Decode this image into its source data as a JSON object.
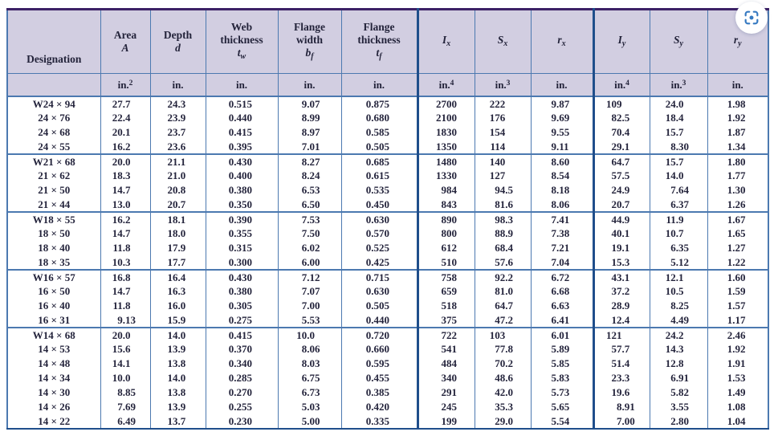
{
  "colors": {
    "header_bg": "#d2cee1",
    "grid_blue": "#4c79b0",
    "thick_blue": "#1f4e8b",
    "top_purple": "#3c2166",
    "icon_blue": "#3579c1"
  },
  "overlay": {
    "capture_icon": "focus-capture-icon"
  },
  "table": {
    "columns": [
      {
        "key": "designation",
        "title_lines": [
          "Designation"
        ],
        "symbol": null,
        "sub": null,
        "unit": "",
        "unit_sup": null,
        "thick_left": false,
        "bottom_align": true
      },
      {
        "key": "area",
        "title_lines": [
          "Area"
        ],
        "symbol": "A",
        "sub": "",
        "unit": "in.",
        "unit_sup": "2",
        "thick_left": false
      },
      {
        "key": "depth",
        "title_lines": [
          "Depth"
        ],
        "symbol": "d",
        "sub": "",
        "unit": "in.",
        "unit_sup": null,
        "thick_left": false
      },
      {
        "key": "web-thickness",
        "title_lines": [
          "Web",
          "thickness"
        ],
        "symbol": "t",
        "sub": "w",
        "unit": "in.",
        "unit_sup": null,
        "thick_left": false
      },
      {
        "key": "flange-width",
        "title_lines": [
          "Flange",
          "width"
        ],
        "symbol": "b",
        "sub": "f",
        "unit": "in.",
        "unit_sup": null,
        "thick_left": false
      },
      {
        "key": "flange-thickness",
        "title_lines": [
          "Flange",
          "thickness"
        ],
        "symbol": "t",
        "sub": "f",
        "unit": "in.",
        "unit_sup": null,
        "thick_left": false
      },
      {
        "key": "Ix",
        "title_lines": [],
        "symbol": "I",
        "sub": "x",
        "unit": "in.",
        "unit_sup": "4",
        "thick_left": true
      },
      {
        "key": "Sx",
        "title_lines": [],
        "symbol": "S",
        "sub": "x",
        "unit": "in.",
        "unit_sup": "3",
        "thick_left": false
      },
      {
        "key": "rx",
        "title_lines": [],
        "symbol": "r",
        "sub": "x",
        "unit": "in.",
        "unit_sup": null,
        "thick_left": false
      },
      {
        "key": "Iy",
        "title_lines": [],
        "symbol": "I",
        "sub": "y",
        "unit": "in.",
        "unit_sup": "4",
        "thick_left": true
      },
      {
        "key": "Sy",
        "title_lines": [],
        "symbol": "S",
        "sub": "y",
        "unit": "in.",
        "unit_sup": "3",
        "thick_left": false
      },
      {
        "key": "ry",
        "title_lines": [],
        "symbol": "r",
        "sub": "y",
        "unit": "in.",
        "unit_sup": null,
        "thick_left": false
      }
    ],
    "groups": [
      {
        "rows": [
          [
            "W24 × 94",
            "27.7",
            "24.3",
            "0.515",
            "9.07",
            "0.875",
            "2700",
            "222",
            "9.87",
            "109",
            "24.0",
            "1.98"
          ],
          [
            "24 × 76",
            "22.4",
            "23.9",
            "0.440",
            "8.99",
            "0.680",
            "2100",
            "176",
            "9.69",
            "82.5",
            "18.4",
            "1.92"
          ],
          [
            "24 × 68",
            "20.1",
            "23.7",
            "0.415",
            "8.97",
            "0.585",
            "1830",
            "154",
            "9.55",
            "70.4",
            "15.7",
            "1.87"
          ],
          [
            "24 × 55",
            "16.2",
            "23.6",
            "0.395",
            "7.01",
            "0.505",
            "1350",
            "114",
            "9.11",
            "29.1",
            "8.30",
            "1.34"
          ]
        ]
      },
      {
        "rows": [
          [
            "W21 × 68",
            "20.0",
            "21.1",
            "0.430",
            "8.27",
            "0.685",
            "1480",
            "140",
            "8.60",
            "64.7",
            "15.7",
            "1.80"
          ],
          [
            "21 × 62",
            "18.3",
            "21.0",
            "0.400",
            "8.24",
            "0.615",
            "1330",
            "127",
            "8.54",
            "57.5",
            "14.0",
            "1.77"
          ],
          [
            "21 × 50",
            "14.7",
            "20.8",
            "0.380",
            "6.53",
            "0.535",
            "984",
            "94.5",
            "8.18",
            "24.9",
            "7.64",
            "1.30"
          ],
          [
            "21 × 44",
            "13.0",
            "20.7",
            "0.350",
            "6.50",
            "0.450",
            "843",
            "81.6",
            "8.06",
            "20.7",
            "6.37",
            "1.26"
          ]
        ]
      },
      {
        "rows": [
          [
            "W18 × 55",
            "16.2",
            "18.1",
            "0.390",
            "7.53",
            "0.630",
            "890",
            "98.3",
            "7.41",
            "44.9",
            "11.9",
            "1.67"
          ],
          [
            "18 × 50",
            "14.7",
            "18.0",
            "0.355",
            "7.50",
            "0.570",
            "800",
            "88.9",
            "7.38",
            "40.1",
            "10.7",
            "1.65"
          ],
          [
            "18 × 40",
            "11.8",
            "17.9",
            "0.315",
            "6.02",
            "0.525",
            "612",
            "68.4",
            "7.21",
            "19.1",
            "6.35",
            "1.27"
          ],
          [
            "18 × 35",
            "10.3",
            "17.7",
            "0.300",
            "6.00",
            "0.425",
            "510",
            "57.6",
            "7.04",
            "15.3",
            "5.12",
            "1.22"
          ]
        ]
      },
      {
        "rows": [
          [
            "W16 × 57",
            "16.8",
            "16.4",
            "0.430",
            "7.12",
            "0.715",
            "758",
            "92.2",
            "6.72",
            "43.1",
            "12.1",
            "1.60"
          ],
          [
            "16 × 50",
            "14.7",
            "16.3",
            "0.380",
            "7.07",
            "0.630",
            "659",
            "81.0",
            "6.68",
            "37.2",
            "10.5",
            "1.59"
          ],
          [
            "16 × 40",
            "11.8",
            "16.0",
            "0.305",
            "7.00",
            "0.505",
            "518",
            "64.7",
            "6.63",
            "28.9",
            "8.25",
            "1.57"
          ],
          [
            "16 × 31",
            "9.13",
            "15.9",
            "0.275",
            "5.53",
            "0.440",
            "375",
            "47.2",
            "6.41",
            "12.4",
            "4.49",
            "1.17"
          ]
        ]
      },
      {
        "rows": [
          [
            "W14 × 68",
            "20.0",
            "14.0",
            "0.415",
            "10.0",
            "0.720",
            "722",
            "103",
            "6.01",
            "121",
            "24.2",
            "2.46"
          ],
          [
            "14 × 53",
            "15.6",
            "13.9",
            "0.370",
            "8.06",
            "0.660",
            "541",
            "77.8",
            "5.89",
            "57.7",
            "14.3",
            "1.92"
          ],
          [
            "14 × 48",
            "14.1",
            "13.8",
            "0.340",
            "8.03",
            "0.595",
            "484",
            "70.2",
            "5.85",
            "51.4",
            "12.8",
            "1.91"
          ],
          [
            "14 × 34",
            "10.0",
            "14.0",
            "0.285",
            "6.75",
            "0.455",
            "340",
            "48.6",
            "5.83",
            "23.3",
            "6.91",
            "1.53"
          ],
          [
            "14 × 30",
            "8.85",
            "13.8",
            "0.270",
            "6.73",
            "0.385",
            "291",
            "42.0",
            "5.73",
            "19.6",
            "5.82",
            "1.49"
          ],
          [
            "14 × 26",
            "7.69",
            "13.9",
            "0.255",
            "5.03",
            "0.420",
            "245",
            "35.3",
            "5.65",
            "8.91",
            "3.55",
            "1.08"
          ],
          [
            "14 × 22",
            "6.49",
            "13.7",
            "0.230",
            "5.00",
            "0.335",
            "199",
            "29.0",
            "5.54",
            "7.00",
            "2.80",
            "1.04"
          ]
        ]
      }
    ]
  }
}
